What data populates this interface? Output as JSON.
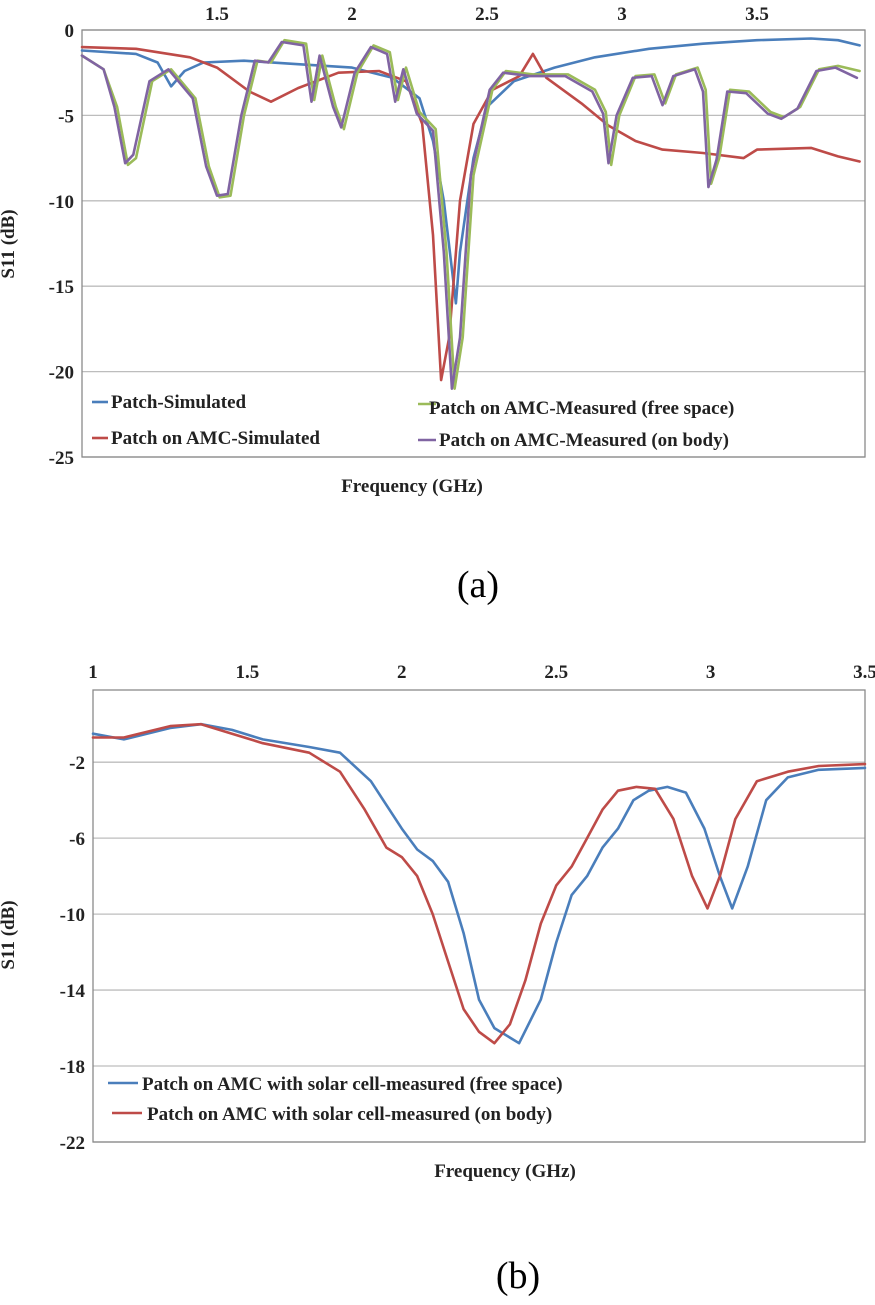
{
  "chart_data": [
    {
      "type": "line",
      "caption": "(a)",
      "xlabel": "Frequency (GHz)",
      "ylabel": "S11 (dB)",
      "xlim": [
        1.0,
        3.9
      ],
      "ylim": [
        -25,
        0
      ],
      "x_ticks": [
        1.5,
        2,
        2.5,
        3,
        3.5
      ],
      "y_ticks": [
        0,
        -5,
        -10,
        -15,
        -20,
        -25
      ],
      "grid": true,
      "legend_position": "bottom",
      "series": [
        {
          "name": "Patch-Simulated",
          "color": "#4a7ebb",
          "points": [
            [
              1.0,
              -1.2
            ],
            [
              1.2,
              -1.4
            ],
            [
              1.28,
              -1.9
            ],
            [
              1.33,
              -3.3
            ],
            [
              1.38,
              -2.4
            ],
            [
              1.45,
              -1.9
            ],
            [
              1.6,
              -1.8
            ],
            [
              1.8,
              -2.0
            ],
            [
              2.0,
              -2.2
            ],
            [
              2.15,
              -2.8
            ],
            [
              2.25,
              -4.0
            ],
            [
              2.3,
              -6.5
            ],
            [
              2.34,
              -10
            ],
            [
              2.37,
              -14
            ],
            [
              2.385,
              -16.0
            ],
            [
              2.4,
              -13
            ],
            [
              2.45,
              -7.5
            ],
            [
              2.5,
              -4.5
            ],
            [
              2.6,
              -3.0
            ],
            [
              2.75,
              -2.2
            ],
            [
              2.9,
              -1.6
            ],
            [
              3.1,
              -1.1
            ],
            [
              3.3,
              -0.8
            ],
            [
              3.5,
              -0.6
            ],
            [
              3.7,
              -0.5
            ],
            [
              3.8,
              -0.6
            ],
            [
              3.88,
              -0.9
            ]
          ]
        },
        {
          "name": "Patch on AMC-Simulated",
          "color": "#be4b48",
          "points": [
            [
              1.0,
              -1.0
            ],
            [
              1.2,
              -1.1
            ],
            [
              1.4,
              -1.6
            ],
            [
              1.5,
              -2.2
            ],
            [
              1.62,
              -3.6
            ],
            [
              1.7,
              -4.2
            ],
            [
              1.8,
              -3.4
            ],
            [
              1.95,
              -2.5
            ],
            [
              2.1,
              -2.4
            ],
            [
              2.2,
              -3.0
            ],
            [
              2.26,
              -5.5
            ],
            [
              2.3,
              -12
            ],
            [
              2.33,
              -20.5
            ],
            [
              2.36,
              -18
            ],
            [
              2.4,
              -10
            ],
            [
              2.45,
              -5.5
            ],
            [
              2.52,
              -3.5
            ],
            [
              2.62,
              -2.7
            ],
            [
              2.67,
              -1.4
            ],
            [
              2.72,
              -2.8
            ],
            [
              2.85,
              -4.3
            ],
            [
              2.95,
              -5.6
            ],
            [
              3.05,
              -6.5
            ],
            [
              3.15,
              -7.0
            ],
            [
              3.3,
              -7.2
            ],
            [
              3.45,
              -7.5
            ],
            [
              3.5,
              -7.0
            ],
            [
              3.7,
              -6.9
            ],
            [
              3.8,
              -7.4
            ],
            [
              3.88,
              -7.7
            ]
          ]
        },
        {
          "name": "Patch on AMC-Measured (free space)",
          "color": "#9bbb59",
          "points": [
            [
              1.0,
              -1.5
            ],
            [
              1.08,
              -2.3
            ],
            [
              1.13,
              -4.5
            ],
            [
              1.17,
              -7.9
            ],
            [
              1.2,
              -7.5
            ],
            [
              1.26,
              -3.0
            ],
            [
              1.33,
              -2.3
            ],
            [
              1.42,
              -4.0
            ],
            [
              1.47,
              -8.0
            ],
            [
              1.51,
              -9.8
            ],
            [
              1.55,
              -9.7
            ],
            [
              1.6,
              -5.0
            ],
            [
              1.65,
              -1.8
            ],
            [
              1.7,
              -1.9
            ],
            [
              1.75,
              -0.6
            ],
            [
              1.83,
              -0.8
            ],
            [
              1.86,
              -4.1
            ],
            [
              1.89,
              -1.5
            ],
            [
              1.94,
              -4.5
            ],
            [
              1.97,
              -5.8
            ],
            [
              2.02,
              -2.5
            ],
            [
              2.08,
              -0.9
            ],
            [
              2.14,
              -1.3
            ],
            [
              2.17,
              -4.1
            ],
            [
              2.2,
              -2.2
            ],
            [
              2.25,
              -4.8
            ],
            [
              2.31,
              -5.8
            ],
            [
              2.35,
              -13
            ],
            [
              2.38,
              -21.0
            ],
            [
              2.41,
              -18
            ],
            [
              2.45,
              -8.5
            ],
            [
              2.52,
              -3.5
            ],
            [
              2.57,
              -2.4
            ],
            [
              2.67,
              -2.6
            ],
            [
              2.8,
              -2.6
            ],
            [
              2.9,
              -3.5
            ],
            [
              2.94,
              -4.8
            ],
            [
              2.96,
              -7.9
            ],
            [
              2.99,
              -5.0
            ],
            [
              3.05,
              -2.7
            ],
            [
              3.12,
              -2.6
            ],
            [
              3.16,
              -4.3
            ],
            [
              3.2,
              -2.6
            ],
            [
              3.28,
              -2.2
            ],
            [
              3.31,
              -3.5
            ],
            [
              3.33,
              -9.0
            ],
            [
              3.36,
              -7.5
            ],
            [
              3.4,
              -3.5
            ],
            [
              3.47,
              -3.6
            ],
            [
              3.55,
              -4.8
            ],
            [
              3.6,
              -5.1
            ],
            [
              3.66,
              -4.5
            ],
            [
              3.73,
              -2.3
            ],
            [
              3.8,
              -2.1
            ],
            [
              3.88,
              -2.4
            ]
          ]
        },
        {
          "name": "Patch on AMC-Measured (on body)",
          "color": "#8064a2",
          "points": [
            [
              1.0,
              -1.5
            ],
            [
              1.08,
              -2.3
            ],
            [
              1.12,
              -4.5
            ],
            [
              1.16,
              -7.8
            ],
            [
              1.19,
              -7.3
            ],
            [
              1.25,
              -3.0
            ],
            [
              1.32,
              -2.3
            ],
            [
              1.41,
              -4.0
            ],
            [
              1.46,
              -8.0
            ],
            [
              1.5,
              -9.7
            ],
            [
              1.54,
              -9.6
            ],
            [
              1.59,
              -5.0
            ],
            [
              1.64,
              -1.8
            ],
            [
              1.69,
              -1.9
            ],
            [
              1.74,
              -0.7
            ],
            [
              1.82,
              -0.9
            ],
            [
              1.85,
              -4.2
            ],
            [
              1.88,
              -1.5
            ],
            [
              1.93,
              -4.5
            ],
            [
              1.96,
              -5.7
            ],
            [
              2.01,
              -2.5
            ],
            [
              2.07,
              -1.0
            ],
            [
              2.13,
              -1.4
            ],
            [
              2.16,
              -4.2
            ],
            [
              2.19,
              -2.3
            ],
            [
              2.24,
              -4.9
            ],
            [
              2.3,
              -5.9
            ],
            [
              2.34,
              -13
            ],
            [
              2.37,
              -21.0
            ],
            [
              2.4,
              -18
            ],
            [
              2.44,
              -8.5
            ],
            [
              2.51,
              -3.5
            ],
            [
              2.56,
              -2.5
            ],
            [
              2.66,
              -2.7
            ],
            [
              2.79,
              -2.7
            ],
            [
              2.89,
              -3.6
            ],
            [
              2.93,
              -4.9
            ],
            [
              2.95,
              -7.8
            ],
            [
              2.98,
              -5.0
            ],
            [
              3.04,
              -2.8
            ],
            [
              3.11,
              -2.7
            ],
            [
              3.15,
              -4.4
            ],
            [
              3.19,
              -2.7
            ],
            [
              3.27,
              -2.3
            ],
            [
              3.3,
              -3.6
            ],
            [
              3.32,
              -9.2
            ],
            [
              3.35,
              -7.6
            ],
            [
              3.39,
              -3.6
            ],
            [
              3.46,
              -3.7
            ],
            [
              3.54,
              -4.9
            ],
            [
              3.59,
              -5.2
            ],
            [
              3.65,
              -4.6
            ],
            [
              3.72,
              -2.4
            ],
            [
              3.79,
              -2.2
            ],
            [
              3.87,
              -2.8
            ]
          ]
        }
      ]
    },
    {
      "type": "line",
      "caption": "(b)",
      "xlabel": "Frequency (GHz)",
      "ylabel": "S11 (dB)",
      "xlim": [
        1.0,
        3.5
      ],
      "ylim": [
        -22,
        1.8
      ],
      "x_ticks": [
        1,
        1.5,
        2,
        2.5,
        3,
        3.5
      ],
      "y_ticks": [
        -2,
        -6,
        -10,
        -14,
        -18,
        -22
      ],
      "grid": true,
      "legend_position": "bottom",
      "series": [
        {
          "name": "Patch on AMC with solar cell-measured (free space)",
          "color": "#4a7ebb",
          "points": [
            [
              1.0,
              -0.5
            ],
            [
              1.1,
              -0.8
            ],
            [
              1.25,
              -0.2
            ],
            [
              1.35,
              0.0
            ],
            [
              1.45,
              -0.3
            ],
            [
              1.55,
              -0.8
            ],
            [
              1.7,
              -1.2
            ],
            [
              1.8,
              -1.5
            ],
            [
              1.9,
              -3.0
            ],
            [
              2.0,
              -5.5
            ],
            [
              2.05,
              -6.6
            ],
            [
              2.1,
              -7.2
            ],
            [
              2.15,
              -8.3
            ],
            [
              2.2,
              -11
            ],
            [
              2.25,
              -14.5
            ],
            [
              2.3,
              -16.0
            ],
            [
              2.38,
              -16.8
            ],
            [
              2.45,
              -14.5
            ],
            [
              2.5,
              -11.5
            ],
            [
              2.55,
              -9.0
            ],
            [
              2.6,
              -8.0
            ],
            [
              2.65,
              -6.5
            ],
            [
              2.7,
              -5.5
            ],
            [
              2.75,
              -4.0
            ],
            [
              2.8,
              -3.5
            ],
            [
              2.86,
              -3.3
            ],
            [
              2.92,
              -3.6
            ],
            [
              2.98,
              -5.5
            ],
            [
              3.03,
              -8.0
            ],
            [
              3.07,
              -9.7
            ],
            [
              3.12,
              -7.5
            ],
            [
              3.18,
              -4.0
            ],
            [
              3.25,
              -2.8
            ],
            [
              3.35,
              -2.4
            ],
            [
              3.5,
              -2.3
            ]
          ]
        },
        {
          "name": "Patch on AMC with solar cell-measured (on body)",
          "color": "#be4b48",
          "points": [
            [
              1.0,
              -0.7
            ],
            [
              1.1,
              -0.7
            ],
            [
              1.25,
              -0.1
            ],
            [
              1.35,
              0.0
            ],
            [
              1.45,
              -0.5
            ],
            [
              1.55,
              -1.0
            ],
            [
              1.7,
              -1.5
            ],
            [
              1.8,
              -2.5
            ],
            [
              1.88,
              -4.5
            ],
            [
              1.95,
              -6.5
            ],
            [
              2.0,
              -7.0
            ],
            [
              2.05,
              -8.0
            ],
            [
              2.1,
              -10.0
            ],
            [
              2.15,
              -12.5
            ],
            [
              2.2,
              -15.0
            ],
            [
              2.25,
              -16.2
            ],
            [
              2.3,
              -16.8
            ],
            [
              2.35,
              -15.8
            ],
            [
              2.4,
              -13.5
            ],
            [
              2.45,
              -10.5
            ],
            [
              2.5,
              -8.5
            ],
            [
              2.55,
              -7.5
            ],
            [
              2.6,
              -6.0
            ],
            [
              2.65,
              -4.5
            ],
            [
              2.7,
              -3.5
            ],
            [
              2.76,
              -3.3
            ],
            [
              2.82,
              -3.4
            ],
            [
              2.88,
              -5.0
            ],
            [
              2.94,
              -8.0
            ],
            [
              2.99,
              -9.7
            ],
            [
              3.03,
              -8.0
            ],
            [
              3.08,
              -5.0
            ],
            [
              3.15,
              -3.0
            ],
            [
              3.25,
              -2.5
            ],
            [
              3.35,
              -2.2
            ],
            [
              3.5,
              -2.1
            ]
          ]
        }
      ]
    }
  ]
}
